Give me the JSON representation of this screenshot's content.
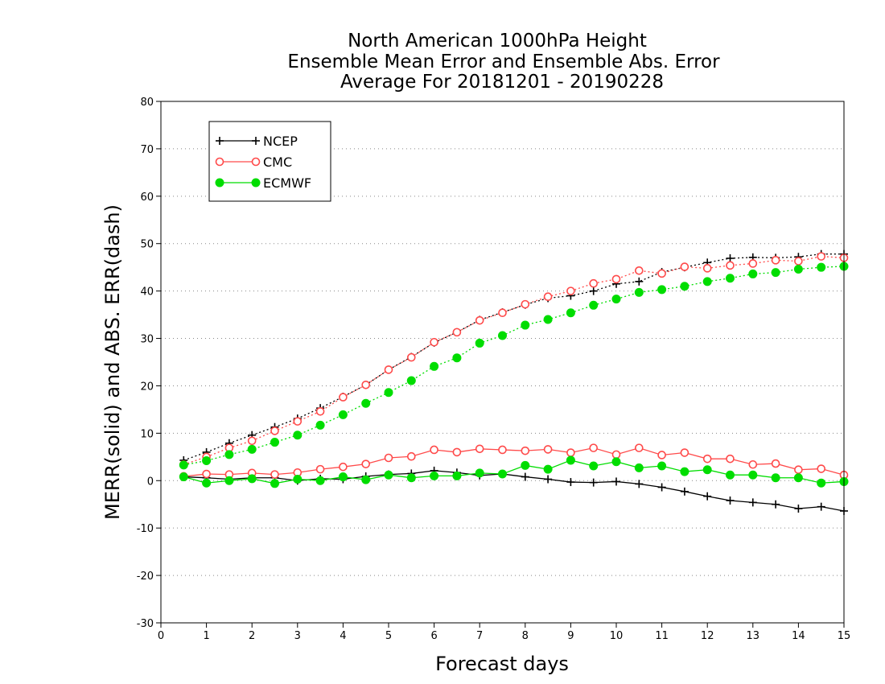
{
  "chart_data": {
    "type": "line",
    "title_lines": [
      "North American 1000hPa Height",
      "Ensemble Mean Error and Ensemble Abs. Error",
      "Average For 20181201 - 20190228"
    ],
    "xlabel": "Forecast days",
    "ylabel": "MERR(solid) and ABS. ERR(dash)",
    "xlim": [
      0,
      15
    ],
    "ylim": [
      -30,
      80
    ],
    "xticks": [
      "0",
      "1",
      "2",
      "3",
      "4",
      "5",
      "6",
      "7",
      "8",
      "9",
      "10",
      "11",
      "12",
      "13",
      "14",
      "15"
    ],
    "yticks": [
      "-30",
      "-20",
      "-10",
      "0",
      "10",
      "20",
      "30",
      "40",
      "50",
      "60",
      "70",
      "80"
    ],
    "grid": "horizontal dotted",
    "legend_position": "top-left",
    "x": [
      0.5,
      1,
      1.5,
      2,
      2.5,
      3,
      3.5,
      4,
      4.5,
      5,
      5.5,
      6,
      6.5,
      7,
      7.5,
      8,
      8.5,
      9,
      9.5,
      10,
      10.5,
      11,
      11.5,
      12,
      12.5,
      13,
      13.5,
      14,
      14.5,
      15
    ],
    "series": [
      {
        "name": "NCEP",
        "color": "#000000",
        "marker": "plus",
        "merr": [
          0.8,
          0.6,
          0.3,
          0.6,
          0.6,
          0.0,
          0.4,
          0.3,
          0.9,
          1.3,
          1.5,
          2.1,
          1.7,
          1.1,
          1.4,
          0.8,
          0.3,
          -0.3,
          -0.4,
          -0.2,
          -0.7,
          -1.4,
          -2.3,
          -3.3,
          -4.2,
          -4.6,
          -5.0,
          -5.9,
          -5.5,
          -6.4
        ],
        "abs_err": [
          4.3,
          6.0,
          7.9,
          9.6,
          11.3,
          13.1,
          15.3,
          17.7,
          20.2,
          23.4,
          26.1,
          29.1,
          31.3,
          33.9,
          35.5,
          37.1,
          38.5,
          39.0,
          40.0,
          41.5,
          42.0,
          44.0,
          45.0,
          46.0,
          46.9,
          47.1,
          47.0,
          47.2,
          47.8,
          47.8
        ]
      },
      {
        "name": "CMC",
        "color": "#ff4a4a",
        "marker": "open-circle",
        "merr": [
          0.9,
          1.4,
          1.3,
          1.6,
          1.3,
          1.7,
          2.4,
          2.9,
          3.5,
          4.8,
          5.1,
          6.5,
          6.0,
          6.7,
          6.5,
          6.3,
          6.6,
          5.9,
          6.9,
          5.5,
          6.9,
          5.4,
          5.9,
          4.6,
          4.6,
          3.4,
          3.6,
          2.3,
          2.5,
          1.2
        ],
        "abs_err": [
          3.4,
          5.0,
          6.9,
          8.4,
          10.5,
          12.5,
          14.6,
          17.6,
          20.2,
          23.4,
          26.0,
          29.2,
          31.3,
          33.8,
          35.4,
          37.2,
          38.8,
          40.0,
          41.6,
          42.5,
          44.3,
          43.7,
          45.1,
          44.8,
          45.4,
          45.8,
          46.5,
          46.3,
          47.3,
          47.0
        ]
      },
      {
        "name": "ECMWF",
        "color": "#00dd00",
        "marker": "filled-circle",
        "merr": [
          0.8,
          -0.5,
          0.0,
          0.4,
          -0.6,
          0.3,
          0.0,
          0.8,
          0.2,
          1.2,
          0.6,
          1.0,
          1.0,
          1.6,
          1.4,
          3.2,
          2.4,
          4.3,
          3.1,
          4.0,
          2.7,
          3.1,
          1.9,
          2.3,
          1.2,
          1.2,
          0.6,
          0.6,
          -0.5,
          -0.2
        ],
        "abs_err": [
          3.3,
          4.2,
          5.5,
          6.6,
          8.1,
          9.6,
          11.7,
          13.9,
          16.3,
          18.6,
          21.1,
          24.1,
          25.9,
          29.0,
          30.6,
          32.8,
          34.0,
          35.4,
          37.0,
          38.3,
          39.7,
          40.3,
          41.0,
          42.0,
          42.7,
          43.6,
          43.9,
          44.6,
          45.0,
          45.2
        ]
      }
    ]
  }
}
